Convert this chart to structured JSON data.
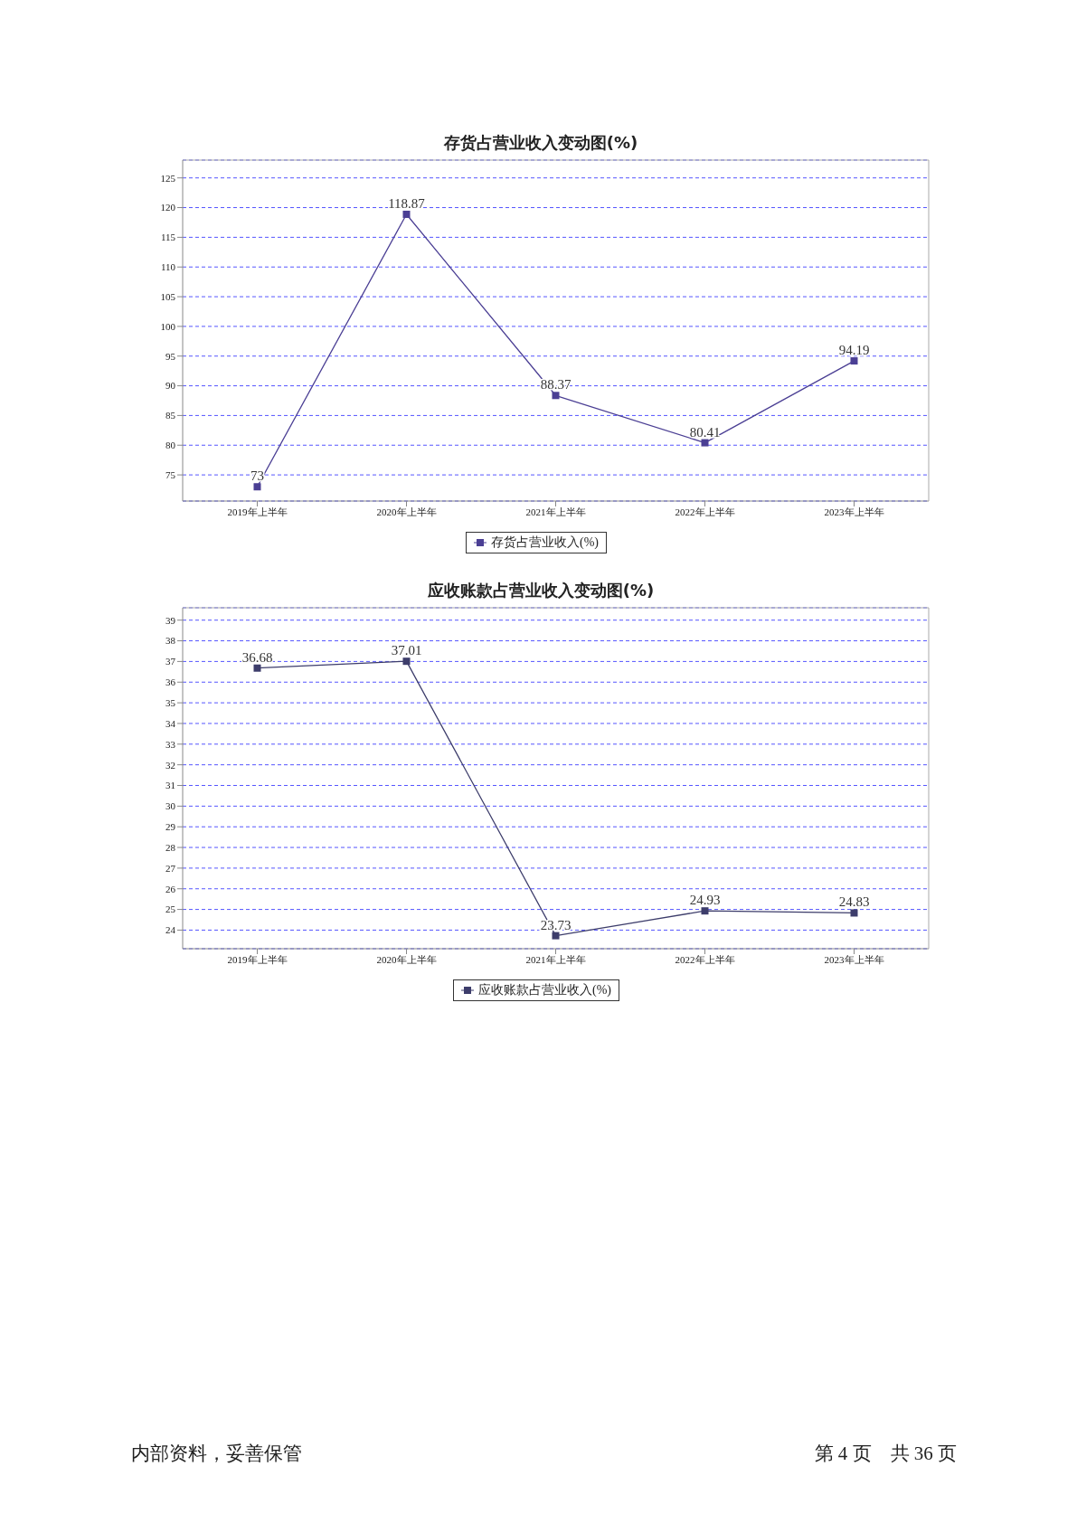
{
  "chart_data": [
    {
      "type": "line",
      "title": "存货占营业收入变动图(%)",
      "categories": [
        "2019年上半年",
        "2020年上半年",
        "2021年上半年",
        "2022年上半年",
        "2023年上半年"
      ],
      "series": [
        {
          "name": "存货占营业收入(%)",
          "color": "#4b3f94",
          "values": [
            73,
            118.87,
            88.37,
            80.41,
            94.19
          ]
        }
      ],
      "ylim": [
        70.6,
        128
      ],
      "yticks": [
        75,
        80,
        85,
        90,
        95,
        100,
        105,
        110,
        115,
        120,
        125
      ],
      "grid": "y",
      "legend": "bottom",
      "marker": "square",
      "line_style": "solid",
      "data_labels": true
    },
    {
      "type": "line",
      "title": "应收账款占营业收入变动图(%)",
      "categories": [
        "2019年上半年",
        "2020年上半年",
        "2021年上半年",
        "2022年上半年",
        "2023年上半年"
      ],
      "series": [
        {
          "name": "应收账款占营业收入(%)",
          "color": "#3d3d6b",
          "values": [
            36.68,
            37.01,
            23.73,
            24.93,
            24.83
          ]
        }
      ],
      "ylim": [
        23.1,
        39.6
      ],
      "yticks": [
        24,
        25,
        26,
        27,
        28,
        29,
        30,
        31,
        32,
        33,
        34,
        35,
        36,
        37,
        38,
        39
      ],
      "grid": "y",
      "legend": "bottom",
      "marker": "square",
      "line_style": "solid",
      "data_labels": true,
      "annotations": [
        "内部资料，妥善保管",
        "第 4 页　共 36 页"
      ]
    }
  ]
}
